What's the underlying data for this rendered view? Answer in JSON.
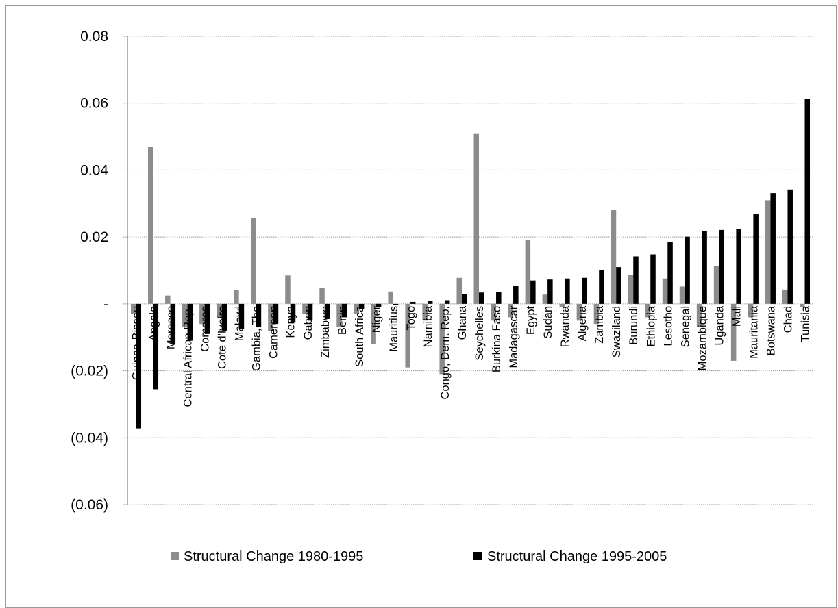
{
  "chart_data": {
    "type": "bar",
    "title": "",
    "xlabel": "",
    "ylabel": "",
    "ylim": [
      -0.06,
      0.08
    ],
    "yticks": [
      0.08,
      0.06,
      0.04,
      0.02,
      0,
      -0.02,
      -0.04,
      -0.06
    ],
    "ytick_labels": [
      "0.08",
      "0.06",
      "0.04",
      "0.02",
      "-",
      "(0.02)",
      "(0.04)",
      "(0.06)"
    ],
    "grid": true,
    "legend_position": "bottom",
    "categories": [
      "Guinea-Bissau",
      "Angola",
      "Morocco",
      "Central African Rep.",
      "Comoros",
      "Cote d'Ivoire",
      "Malawi",
      "Gambia, The",
      "Cameroon",
      "Kenya",
      "Gabon",
      "Zimbabwe",
      "Benin",
      "South Africa",
      "Niger",
      "Mauritius",
      "Togo",
      "Namibia",
      "Congo, Dem. Rep.",
      "Ghana",
      "Seychelles",
      "Burkina Faso",
      "Madagascar",
      "Egypt",
      "Sudan",
      "Rwanda",
      "Algeria",
      "Zambia",
      "Swaziland",
      "Burundi",
      "Ethiopia",
      "Lesotho",
      "Senegal",
      "Mozambique",
      "Uganda",
      "Mali",
      "Mauritania",
      "Botswana",
      "Chad",
      "Tunisia"
    ],
    "series": [
      {
        "name": "Structural Change 1980-1995",
        "color": "#8c8c8c",
        "values": [
          -0.003,
          0.047,
          0.0025,
          -0.007,
          -0.006,
          -0.004,
          0.0042,
          0.0257,
          -0.008,
          0.0085,
          -0.003,
          0.0048,
          -0.007,
          -0.003,
          -0.012,
          0.0037,
          -0.019,
          -0.005,
          -0.021,
          0.0078,
          0.051,
          -0.005,
          -0.004,
          0.019,
          0.0028,
          -0.001,
          -0.005,
          -0.006,
          0.028,
          0.0087,
          -0.004,
          0.0076,
          0.0052,
          -0.007,
          0.0114,
          -0.017,
          -0.004,
          0.031,
          0.0043,
          -0.001
        ]
      },
      {
        "name": "Structural Change 1995-2005",
        "color": "#000000",
        "values": [
          -0.0372,
          -0.0255,
          -0.012,
          -0.011,
          -0.009,
          -0.008,
          -0.0075,
          -0.007,
          -0.006,
          -0.0055,
          -0.005,
          -0.0045,
          -0.004,
          -0.0015,
          -0.001,
          -0.0003,
          0.0006,
          0.0009,
          0.0011,
          0.0029,
          0.0034,
          0.0036,
          0.0055,
          0.007,
          0.0073,
          0.0076,
          0.0078,
          0.0101,
          0.011,
          0.0142,
          0.0148,
          0.0184,
          0.0201,
          0.0218,
          0.0221,
          0.0223,
          0.0269,
          0.0331,
          0.0342,
          0.0612
        ]
      }
    ]
  }
}
